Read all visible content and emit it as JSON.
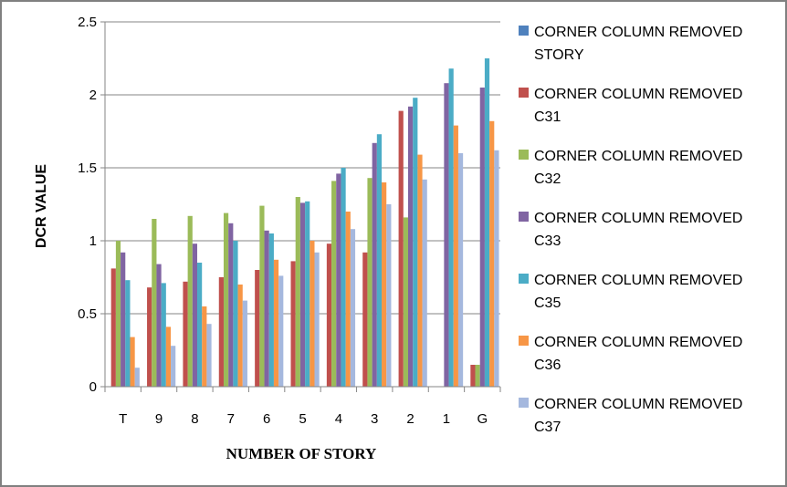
{
  "chart_data": {
    "type": "bar",
    "title": "",
    "xlabel": "NUMBER OF STORY",
    "ylabel": "DCR VALUE",
    "ylim": [
      0,
      2.5
    ],
    "yticks": [
      "0",
      "0.5",
      "1",
      "1.5",
      "2",
      "2.5"
    ],
    "grid": "horizontal major gridlines",
    "legend_position": "right",
    "categories": [
      "T",
      "9",
      "8",
      "7",
      "6",
      "5",
      "4",
      "3",
      "2",
      "1",
      "G"
    ],
    "series": [
      {
        "name_line1": "CORNER COLUMN REMOVED",
        "name_line2": "STORY",
        "color": "#4F81BD",
        "values": [
          null,
          null,
          null,
          null,
          null,
          null,
          null,
          null,
          null,
          null,
          null
        ]
      },
      {
        "name_line1": "CORNER COLUMN REMOVED",
        "name_line2": "C31",
        "color": "#C0504D",
        "values": [
          0.81,
          0.68,
          0.72,
          0.75,
          0.8,
          0.86,
          0.98,
          0.92,
          1.89,
          null,
          0.15
        ]
      },
      {
        "name_line1": "CORNER COLUMN REMOVED",
        "name_line2": "C32",
        "color": "#9BBB59",
        "values": [
          1.0,
          1.15,
          1.17,
          1.19,
          1.24,
          1.3,
          1.41,
          1.43,
          1.16,
          null,
          0.15
        ]
      },
      {
        "name_line1": "CORNER COLUMN REMOVED",
        "name_line2": "C33",
        "color": "#8064A2",
        "values": [
          0.92,
          0.84,
          0.98,
          1.12,
          1.07,
          1.26,
          1.46,
          1.67,
          1.92,
          2.08,
          2.05
        ]
      },
      {
        "name_line1": "CORNER COLUMN REMOVED",
        "name_line2": "C35",
        "color": "#4BACC6",
        "values": [
          0.73,
          0.71,
          0.85,
          1.0,
          1.05,
          1.27,
          1.5,
          1.73,
          1.98,
          2.18,
          2.25
        ]
      },
      {
        "name_line1": "CORNER COLUMN REMOVED",
        "name_line2": "C36",
        "color": "#F79646",
        "values": [
          0.34,
          0.41,
          0.55,
          0.7,
          0.87,
          1.0,
          1.2,
          1.4,
          1.59,
          1.79,
          1.82
        ]
      },
      {
        "name_line1": "CORNER COLUMN REMOVED",
        "name_line2": "C37",
        "color": "#A5B8DE",
        "values": [
          0.13,
          0.28,
          0.43,
          0.59,
          0.76,
          0.92,
          1.08,
          1.25,
          1.42,
          1.6,
          1.62
        ]
      }
    ]
  }
}
